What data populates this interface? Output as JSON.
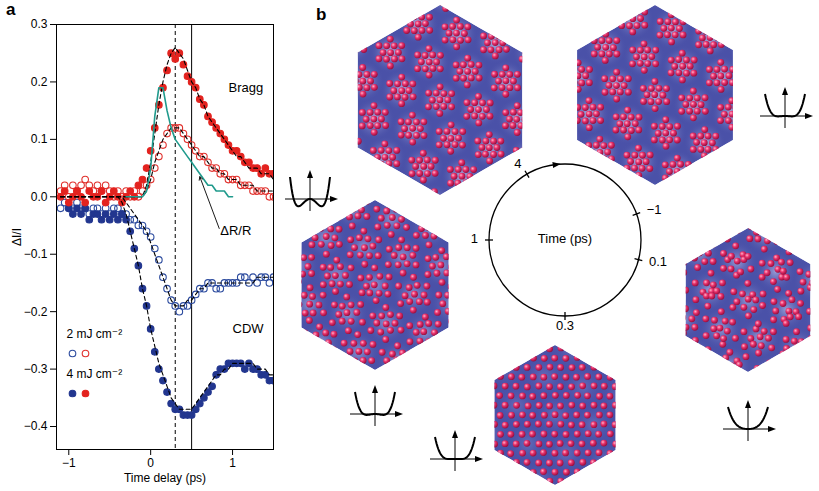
{
  "chart_data": {
    "type": "scatter",
    "panel": "a",
    "x_label": "Time delay (ps)",
    "y_label": "ΔI/I",
    "xlim": [
      -1.15,
      1.5
    ],
    "ylim": [
      -0.44,
      0.3
    ],
    "xticks": [
      {
        "value": -1,
        "label": "−1"
      },
      0,
      1
    ],
    "yticks": [
      {
        "value": -0.4,
        "label": "−0.4"
      },
      {
        "value": -0.3,
        "label": "−0.3"
      },
      {
        "value": -0.2,
        "label": "−0.2"
      },
      {
        "value": -0.1,
        "label": "−0.1"
      },
      {
        "value": 0,
        "label": "0.0"
      },
      0.1,
      0.2,
      0.3
    ],
    "legend": "lower left",
    "x": [
      -1.1,
      -1.05,
      -1,
      -0.95,
      -0.9,
      -0.85,
      -0.8,
      -0.75,
      -0.7,
      -0.65,
      -0.6,
      -0.55,
      -0.5,
      -0.45,
      -0.4,
      -0.35,
      -0.3,
      -0.25,
      -0.2,
      -0.15,
      -0.1,
      -0.05,
      0,
      0.05,
      0.1,
      0.15,
      0.2,
      0.25,
      0.3,
      0.35,
      0.4,
      0.45,
      0.5,
      0.55,
      0.6,
      0.65,
      0.7,
      0.75,
      0.8,
      0.85,
      0.9,
      0.95,
      1,
      1.05,
      1.1,
      1.15,
      1.2,
      1.25,
      1.3,
      1.35,
      1.4,
      1.45,
      1.5
    ],
    "series": [
      {
        "name": "2 mJ cm⁻²",
        "color": "#2b4a9e",
        "marker": "open",
        "values": [
          -0.02,
          -0.01,
          -0.02,
          -0.02,
          -0.01,
          -0.02,
          -0.02,
          -0.03,
          -0.02,
          -0.02,
          -0.03,
          -0.02,
          -0.03,
          -0.02,
          -0.02,
          -0.03,
          -0.03,
          -0.04,
          -0.04,
          -0.05,
          -0.05,
          -0.06,
          -0.07,
          -0.09,
          -0.11,
          -0.14,
          -0.16,
          -0.18,
          -0.19,
          -0.2,
          -0.19,
          -0.19,
          -0.18,
          -0.17,
          -0.16,
          -0.16,
          -0.15,
          -0.15,
          -0.16,
          -0.16,
          -0.15,
          -0.15,
          -0.15,
          -0.15,
          -0.14,
          -0.14,
          -0.15,
          -0.14,
          -0.15,
          -0.14,
          -0.14,
          -0.15,
          -0.14
        ],
        "fit": [
          0,
          0,
          0,
          0,
          0,
          0,
          0,
          0,
          0,
          0,
          0,
          0,
          0,
          0,
          0,
          0,
          -0.01,
          -0.02,
          -0.03,
          -0.04,
          -0.05,
          -0.06,
          -0.08,
          -0.1,
          -0.12,
          -0.14,
          -0.16,
          -0.18,
          -0.19,
          -0.19,
          -0.19,
          -0.18,
          -0.18,
          -0.17,
          -0.16,
          -0.16,
          -0.15,
          -0.15,
          -0.15,
          -0.15,
          -0.15,
          -0.15,
          -0.15,
          -0.15,
          -0.15,
          -0.15,
          -0.15,
          -0.15,
          -0.14,
          -0.14,
          -0.14,
          -0.14,
          -0.14
        ]
      },
      {
        "name": "2 mJ cm⁻²",
        "color": "#e0302c",
        "marker": "open",
        "values": [
          0.01,
          0.02,
          0,
          0.02,
          0.01,
          0.02,
          0.03,
          0.02,
          0.01,
          0.02,
          0.01,
          0.02,
          0.01,
          0,
          0.01,
          0,
          0.01,
          0,
          0.01,
          0,
          0.01,
          0.02,
          0.03,
          0.05,
          0.07,
          0.09,
          0.11,
          0.12,
          0.12,
          0.12,
          0.11,
          0.1,
          0.09,
          0.08,
          0.07,
          0.07,
          0.06,
          0.05,
          0.05,
          0.04,
          0.04,
          0.03,
          0.03,
          0.03,
          0.02,
          0.02,
          0.02,
          0.01,
          0.01,
          0.01,
          0.01,
          0,
          0
        ],
        "fit": [
          0,
          0,
          0,
          0,
          0,
          0,
          0,
          0,
          0,
          0,
          0,
          0,
          0,
          0,
          0,
          0,
          0,
          0,
          0,
          0,
          0,
          0.01,
          0.03,
          0.06,
          0.08,
          0.1,
          0.11,
          0.12,
          0.12,
          0.12,
          0.11,
          0.1,
          0.09,
          0.08,
          0.07,
          0.07,
          0.06,
          0.05,
          0.05,
          0.04,
          0.04,
          0.03,
          0.03,
          0.03,
          0.02,
          0.02,
          0.02,
          0.02,
          0.01,
          0.01,
          0.01,
          0.01,
          0.01
        ]
      },
      {
        "name": "4 mJ cm⁻²",
        "color": "#22368f",
        "marker": "filled",
        "values": [
          null,
          null,
          -0.02,
          -0.03,
          -0.02,
          -0.03,
          -0.02,
          -0.04,
          -0.03,
          -0.03,
          -0.04,
          -0.03,
          -0.04,
          -0.03,
          -0.04,
          -0.03,
          -0.04,
          -0.06,
          -0.09,
          -0.12,
          -0.16,
          -0.19,
          -0.23,
          -0.27,
          -0.3,
          -0.32,
          -0.34,
          -0.36,
          -0.37,
          -0.37,
          -0.38,
          -0.38,
          -0.38,
          -0.37,
          -0.36,
          -0.35,
          -0.34,
          -0.33,
          -0.31,
          -0.3,
          -0.3,
          -0.29,
          -0.29,
          -0.29,
          -0.29,
          -0.3,
          -0.29,
          -0.3,
          -0.3,
          -0.31,
          -0.31,
          -0.32,
          -0.32
        ],
        "fit": [
          0,
          0,
          0,
          0,
          0,
          0,
          0,
          0,
          0,
          0,
          0,
          0,
          0,
          0,
          0,
          -0.01,
          -0.03,
          -0.06,
          -0.09,
          -0.12,
          -0.16,
          -0.19,
          -0.23,
          -0.26,
          -0.29,
          -0.31,
          -0.33,
          -0.35,
          -0.36,
          -0.37,
          -0.37,
          -0.37,
          -0.37,
          -0.36,
          -0.35,
          -0.34,
          -0.33,
          -0.32,
          -0.31,
          -0.31,
          -0.3,
          -0.3,
          -0.29,
          -0.29,
          -0.29,
          -0.29,
          -0.29,
          -0.29,
          -0.3,
          -0.3,
          -0.3,
          -0.31,
          -0.31
        ]
      },
      {
        "name": "4 mJ cm⁻²",
        "color": "#e3231f",
        "marker": "filled",
        "values": [
          0,
          0.01,
          -0.01,
          0,
          0.01,
          0,
          -0.01,
          0.01,
          0,
          0,
          0.01,
          -0.01,
          0,
          0.01,
          0,
          -0.01,
          0,
          0.01,
          0,
          0.02,
          0.03,
          0.05,
          0.08,
          0.12,
          0.16,
          0.19,
          0.22,
          0.25,
          0.24,
          0.25,
          0.23,
          0.21,
          0.2,
          0.19,
          0.17,
          0.16,
          0.14,
          0.13,
          0.12,
          0.11,
          0.1,
          0.09,
          0.08,
          0.08,
          0.07,
          0.06,
          0.06,
          0.05,
          0.05,
          0.04,
          0.05,
          0.04,
          0.04
        ],
        "fit": [
          0,
          0,
          0,
          0,
          0,
          0,
          0,
          0,
          0,
          0,
          0,
          0,
          0,
          0,
          0,
          0,
          0,
          0,
          0,
          0,
          0,
          0.02,
          0.06,
          0.11,
          0.16,
          0.2,
          0.23,
          0.25,
          0.26,
          0.25,
          0.24,
          0.22,
          0.2,
          0.19,
          0.17,
          0.16,
          0.14,
          0.13,
          0.12,
          0.11,
          0.1,
          0.09,
          0.08,
          0.07,
          0.07,
          0.06,
          0.05,
          0.05,
          0.05,
          0.04,
          0.04,
          0.04,
          0.03
        ]
      },
      {
        "type": "line",
        "color": "#1f9a8c",
        "values": [
          null,
          null,
          null,
          null,
          null,
          null,
          null,
          null,
          null,
          null,
          null,
          null,
          null,
          null,
          null,
          null,
          0,
          0,
          0,
          0,
          0,
          0.01,
          0.05,
          0.14,
          0.19,
          0.19,
          0.15,
          0.12,
          0.1,
          0.09,
          0.08,
          0.07,
          0.06,
          0.05,
          0.04,
          0.03,
          0.02,
          0.02,
          0.01,
          0.01,
          0.01,
          0,
          0,
          null,
          null,
          null,
          null,
          null,
          null,
          null,
          null,
          null,
          null
        ]
      }
    ],
    "vlines": [
      {
        "x": 0.3,
        "line_style": "dashed"
      },
      {
        "x": 0.5,
        "line_style": "solid"
      }
    ],
    "annotations": [
      {
        "text": "Bragg",
        "x": 0.95,
        "y": 0.19
      },
      {
        "text": "CDW",
        "x": 1.0,
        "y": -0.23
      },
      {
        "text": "ΔR/R",
        "x": 0.85,
        "y": -0.06,
        "arrow_to": [
          0.6,
          0.035
        ]
      }
    ]
  },
  "diagram": {
    "panel": "b",
    "center_label": "Time (ps)",
    "times": [
      "−1",
      "0.1",
      "0.3",
      "1",
      "4"
    ]
  }
}
